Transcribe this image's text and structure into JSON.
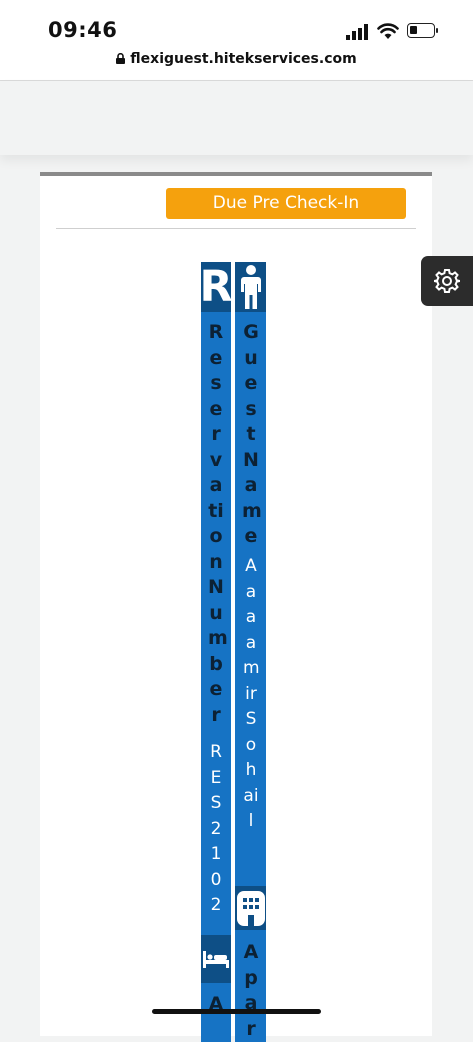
{
  "status_bar": {
    "time": "09:46",
    "url": "flexiguest.hitekservices.com"
  },
  "card": {
    "status_badge": "Due Pre Check-In"
  },
  "reservation": {
    "label": "ReservationNumber",
    "value": "RES2102",
    "tail": "A"
  },
  "guest": {
    "label": "GuestName",
    "value": "AaaamirSohail"
  },
  "apartment": {
    "label": "Apar"
  },
  "colors": {
    "column_blue": "#1673c4",
    "header_blue": "#0e4f86",
    "badge_orange": "#f5a10d",
    "settings_tab": "#2c2c2c"
  },
  "icons": {
    "reservation": "r-letter-icon",
    "guest": "person-icon",
    "room": "bed-icon",
    "apartment": "building-icon",
    "settings": "gear-icon"
  }
}
